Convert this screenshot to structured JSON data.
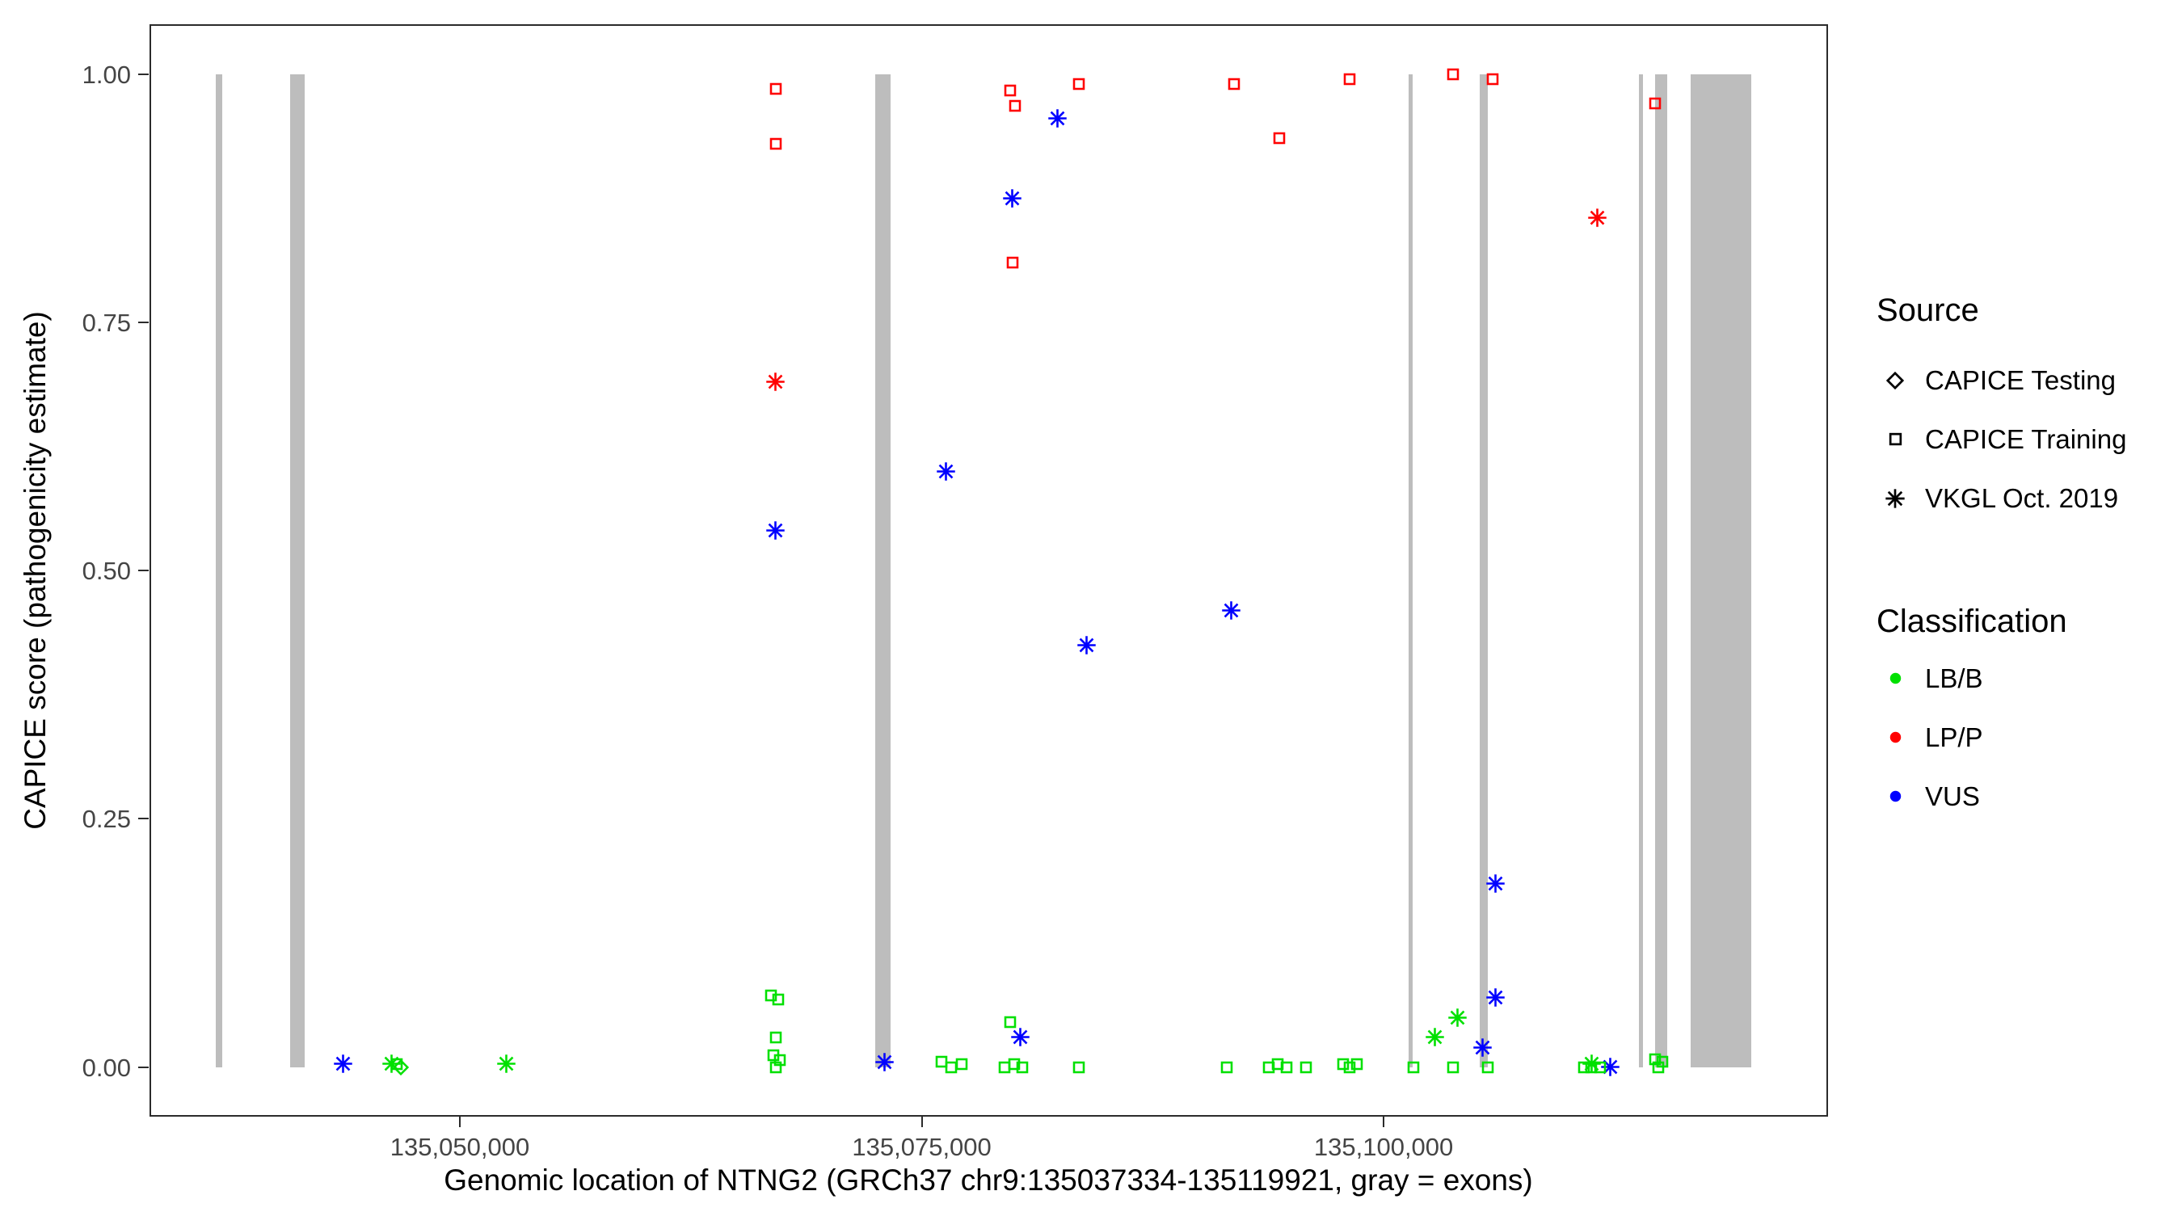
{
  "legend": {
    "source": {
      "title": "Source",
      "items": [
        {
          "shape": "diamond",
          "label": "CAPICE Testing"
        },
        {
          "shape": "square",
          "label": "CAPICE Training"
        },
        {
          "shape": "asterisk",
          "label": "VKGL Oct. 2019"
        }
      ]
    },
    "classification": {
      "title": "Classification",
      "items": [
        {
          "color": "#00E000",
          "label": "LB/B"
        },
        {
          "color": "#FF0000",
          "label": "LP/P"
        },
        {
          "color": "#0000FF",
          "label": "VUS"
        }
      ]
    }
  },
  "chart_data": {
    "type": "scatter",
    "title": "",
    "xlabel": "Genomic location of NTNG2 (GRCh37 chr9:135037334-135119921, gray = exons)",
    "ylabel": "CAPICE score (pathogenicity estimate)",
    "x_domain": [
      135033205,
      135124050
    ],
    "y_domain": [
      -0.05,
      1.05
    ],
    "x_ticks": [
      {
        "value": 135050000,
        "label": "135,050,000"
      },
      {
        "value": 135075000,
        "label": "135,075,000"
      },
      {
        "value": 135100000,
        "label": "135,100,000"
      }
    ],
    "y_ticks": [
      {
        "value": 0.0,
        "label": "0.00"
      },
      {
        "value": 0.25,
        "label": "0.25"
      },
      {
        "value": 0.5,
        "label": "0.50"
      },
      {
        "value": 0.75,
        "label": "0.75"
      },
      {
        "value": 1.0,
        "label": "1.00"
      }
    ],
    "grid": false,
    "legend_position": "right",
    "exon_color": "#BDBDBD",
    "class_colors": {
      "LB/B": "#00E000",
      "LP/P": "#FF0000",
      "VUS": "#0000FF"
    },
    "shape_source_map": {
      "diamond": "CAPICE Testing",
      "square": "CAPICE Training",
      "asterisk": "VKGL Oct. 2019"
    },
    "exons": [
      [
        135036800,
        135037150
      ],
      [
        135040800,
        135041600
      ],
      [
        135072500,
        135073300
      ],
      [
        135101350,
        135101550
      ],
      [
        135105200,
        135105650
      ],
      [
        135113800,
        135114050
      ],
      [
        135114700,
        135115350
      ],
      [
        135116600,
        135119900
      ]
    ],
    "points_columns": [
      "genomic_position",
      "capice_score",
      "shape_source",
      "classification"
    ],
    "points": [
      [
        135067100,
        0.985,
        "square",
        "LP/P"
      ],
      [
        135067100,
        0.93,
        "square",
        "LP/P"
      ],
      [
        135079800,
        0.983,
        "square",
        "LP/P"
      ],
      [
        135080050,
        0.968,
        "square",
        "LP/P"
      ],
      [
        135079900,
        0.81,
        "square",
        "LP/P"
      ],
      [
        135083500,
        0.99,
        "square",
        "LP/P"
      ],
      [
        135091900,
        0.99,
        "square",
        "LP/P"
      ],
      [
        135094350,
        0.935,
        "square",
        "LP/P"
      ],
      [
        135098150,
        0.995,
        "square",
        "LP/P"
      ],
      [
        135103750,
        1.0,
        "square",
        "LP/P"
      ],
      [
        135105900,
        0.995,
        "square",
        "LP/P"
      ],
      [
        135114700,
        0.97,
        "square",
        "LP/P"
      ],
      [
        135067100,
        0.69,
        "asterisk",
        "LP/P"
      ],
      [
        135111550,
        0.855,
        "asterisk",
        "LP/P"
      ],
      [
        135067100,
        0.54,
        "asterisk",
        "VUS"
      ],
      [
        135076300,
        0.6,
        "asterisk",
        "VUS"
      ],
      [
        135079900,
        0.875,
        "asterisk",
        "VUS"
      ],
      [
        135082350,
        0.955,
        "asterisk",
        "VUS"
      ],
      [
        135083900,
        0.425,
        "asterisk",
        "VUS"
      ],
      [
        135091750,
        0.46,
        "asterisk",
        "VUS"
      ],
      [
        135106050,
        0.185,
        "asterisk",
        "VUS"
      ],
      [
        135106050,
        0.07,
        "asterisk",
        "VUS"
      ],
      [
        135105350,
        0.02,
        "asterisk",
        "VUS"
      ],
      [
        135080350,
        0.03,
        "asterisk",
        "VUS"
      ],
      [
        135073000,
        0.005,
        "asterisk",
        "VUS"
      ],
      [
        135043700,
        0.003,
        "asterisk",
        "VUS"
      ],
      [
        135112250,
        0.0,
        "asterisk",
        "VUS"
      ],
      [
        135046300,
        0.003,
        "asterisk",
        "LB/B"
      ],
      [
        135052500,
        0.003,
        "asterisk",
        "LB/B"
      ],
      [
        135102750,
        0.03,
        "asterisk",
        "LB/B"
      ],
      [
        135104000,
        0.05,
        "asterisk",
        "LB/B"
      ],
      [
        135111250,
        0.003,
        "asterisk",
        "LB/B"
      ],
      [
        135046800,
        0.0,
        "diamond",
        "LB/B"
      ],
      [
        135046600,
        0.003,
        "square",
        "LB/B"
      ],
      [
        135066850,
        0.072,
        "square",
        "LB/B"
      ],
      [
        135067250,
        0.068,
        "square",
        "LB/B"
      ],
      [
        135067100,
        0.03,
        "square",
        "LB/B"
      ],
      [
        135066950,
        0.012,
        "square",
        "LB/B"
      ],
      [
        135067300,
        0.007,
        "square",
        "LB/B"
      ],
      [
        135067100,
        0.0,
        "square",
        "LB/B"
      ],
      [
        135076050,
        0.005,
        "square",
        "LB/B"
      ],
      [
        135076600,
        0.0,
        "square",
        "LB/B"
      ],
      [
        135077150,
        0.003,
        "square",
        "LB/B"
      ],
      [
        135079800,
        0.045,
        "square",
        "LB/B"
      ],
      [
        135079500,
        0.0,
        "square",
        "LB/B"
      ],
      [
        135080000,
        0.003,
        "square",
        "LB/B"
      ],
      [
        135080450,
        0.0,
        "square",
        "LB/B"
      ],
      [
        135083500,
        0.0,
        "square",
        "LB/B"
      ],
      [
        135091500,
        0.0,
        "square",
        "LB/B"
      ],
      [
        135093800,
        0.0,
        "square",
        "LB/B"
      ],
      [
        135094270,
        0.003,
        "square",
        "LB/B"
      ],
      [
        135094730,
        0.0,
        "square",
        "LB/B"
      ],
      [
        135095800,
        0.0,
        "square",
        "LB/B"
      ],
      [
        135097800,
        0.003,
        "square",
        "LB/B"
      ],
      [
        135098150,
        0.0,
        "square",
        "LB/B"
      ],
      [
        135098550,
        0.003,
        "square",
        "LB/B"
      ],
      [
        135101600,
        0.0,
        "square",
        "LB/B"
      ],
      [
        135103750,
        0.0,
        "square",
        "LB/B"
      ],
      [
        135105650,
        0.0,
        "square",
        "LB/B"
      ],
      [
        135110850,
        0.0,
        "square",
        "LB/B"
      ],
      [
        135111250,
        0.0,
        "square",
        "LB/B"
      ],
      [
        135111700,
        0.0,
        "square",
        "LB/B"
      ],
      [
        135114700,
        0.008,
        "square",
        "LB/B"
      ],
      [
        135115100,
        0.005,
        "square",
        "LB/B"
      ],
      [
        135114850,
        0.0,
        "square",
        "LB/B"
      ]
    ]
  }
}
